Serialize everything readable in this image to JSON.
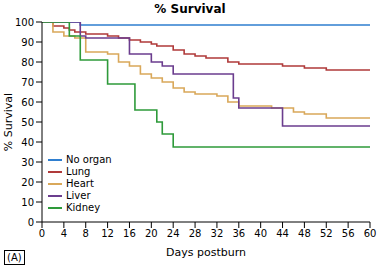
{
  "chart_data": {
    "type": "line",
    "title": "% Survival",
    "x_label": "Days postburn",
    "y_label": "% Survival",
    "annotation": "(A)",
    "x": [
      0,
      2,
      4,
      5,
      6,
      7,
      8,
      12,
      14,
      16,
      17,
      18,
      20,
      21,
      22,
      24,
      26,
      28,
      30,
      32,
      34,
      35,
      36,
      40,
      42,
      44,
      46,
      48,
      52,
      56,
      60
    ],
    "series": [
      {
        "name": "No organ",
        "color": "#2f7fd0",
        "values": [
          100,
          100,
          100,
          100,
          100,
          98.5,
          98.5,
          98.5,
          98.5,
          98.5,
          98.5,
          98.5,
          98.5,
          98.5,
          98.5,
          98.5,
          98.5,
          98.5,
          98.5,
          98.5,
          98.5,
          98.5,
          98.5,
          98.5,
          98.5,
          98.5,
          98.5,
          98.5,
          98.5,
          98.5,
          98.5
        ]
      },
      {
        "name": "Lung",
        "color": "#b03a3a",
        "values": [
          100,
          98,
          97,
          96,
          95,
          95,
          94,
          93,
          92,
          91,
          91,
          90,
          89,
          88,
          88,
          86,
          84,
          83,
          82,
          82,
          80,
          80,
          79,
          79,
          79,
          78,
          78,
          77,
          76,
          76,
          76
        ]
      },
      {
        "name": "Heart",
        "color": "#d9a85a",
        "values": [
          100,
          95,
          93,
          93,
          92,
          92,
          85,
          84,
          80,
          78,
          78,
          74,
          72,
          72,
          70,
          67,
          65,
          64,
          64,
          63,
          60,
          60,
          58,
          58,
          57,
          57,
          55,
          54,
          52,
          52,
          52
        ]
      },
      {
        "name": "Liver",
        "color": "#6b3d8e",
        "values": [
          100,
          100,
          100,
          100,
          100,
          93,
          92,
          92,
          92,
          84,
          84,
          84,
          80,
          80,
          78,
          74,
          74,
          74,
          74,
          74,
          74,
          62,
          57,
          57,
          57,
          48,
          48,
          48,
          48,
          48,
          48
        ]
      },
      {
        "name": "Kidney",
        "color": "#2e9a3a",
        "values": [
          100,
          100,
          100,
          93,
          93,
          81,
          81,
          69,
          69,
          69,
          56,
          56,
          56,
          50,
          44,
          37.5,
          37.5,
          37.5,
          37.5,
          37.5,
          37.5,
          37.5,
          37.5,
          37.5,
          37.5,
          37.5,
          37.5,
          37.5,
          37.5,
          37.5,
          37.5
        ]
      }
    ],
    "xlim": [
      0,
      60
    ],
    "xticks": [
      0,
      4,
      8,
      12,
      16,
      20,
      24,
      28,
      32,
      36,
      40,
      44,
      48,
      52,
      56,
      60
    ],
    "ylim": [
      0,
      100
    ],
    "yticks": [
      0,
      10,
      20,
      30,
      40,
      50,
      60,
      70,
      80,
      90,
      100
    ],
    "grid": false,
    "legend": "lower left",
    "line_style": "step",
    "marker": "none"
  }
}
